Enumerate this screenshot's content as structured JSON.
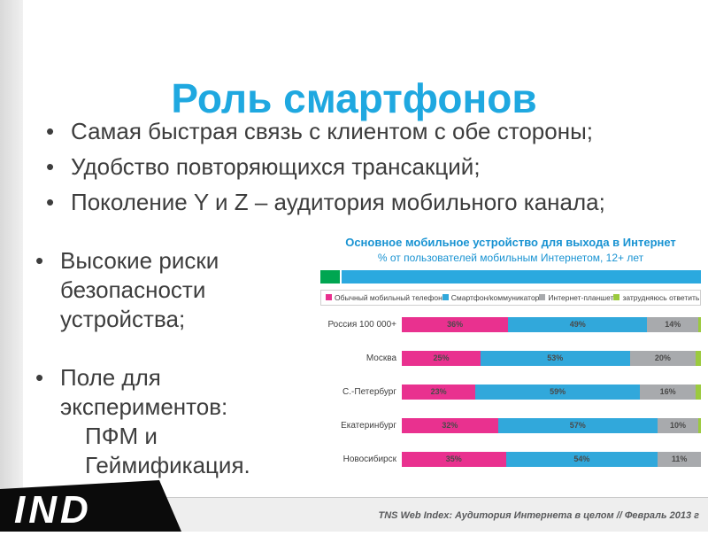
{
  "slide": {
    "title": "Роль смартфонов",
    "bullets_top": [
      "Самая быстрая связь с клиентом с обе стороны;",
      "Удобство повторяющихся трансакций;",
      "Поколение Y и Z – аудитория мобильного канала;"
    ],
    "left_bullets": {
      "item1": "Высокие риски безопасности устройства;",
      "item2_line1": "Поле для экспериментов:",
      "item2_line2": "ПФМ и Геймификация."
    },
    "footer_citation": "TNS Web Index: Аудитория Интернета в целом // Февраль 2013 г",
    "logo_text": "IND",
    "colors": {
      "title_blue": "#1FA8E0",
      "body_text": "#3D3D3D",
      "footer_text": "#595A5C"
    }
  },
  "chart_data": {
    "type": "bar",
    "orientation": "horizontal_stacked",
    "title": "Основное мобильное устройство для выхода в Интернет",
    "subtitle": "% от пользователей мобильным Интернетом, 12+ лет",
    "legend_position": "top",
    "xlim": [
      0,
      100
    ],
    "banner_colors": {
      "green": "#00A651",
      "blue": "#2BA9DF"
    },
    "categories": [
      "Россия 100 000+",
      "Москва",
      "С.-Петербург",
      "Екатеринбург",
      "Новосибирск"
    ],
    "series": [
      {
        "name": "Обычный мобильный телефон",
        "color": "#E9318F",
        "label_color": "#4A4A4A",
        "values": [
          36,
          25,
          23,
          32,
          35
        ]
      },
      {
        "name": "Смартфон/коммуникатор",
        "color": "#31A8DB",
        "label_color": "#4A4A4A",
        "values": [
          49,
          53,
          59,
          57,
          54
        ]
      },
      {
        "name": "Интернет-планшет",
        "color": "#A8AAAD",
        "label_color": "#4A4A4A",
        "values": [
          14,
          20,
          16,
          10,
          11
        ]
      },
      {
        "name": "затрудняюсь ответить",
        "color": "#9BCA3E",
        "label_color": "#4A4A4A",
        "values": [
          1,
          2,
          2,
          1,
          0
        ]
      }
    ]
  }
}
